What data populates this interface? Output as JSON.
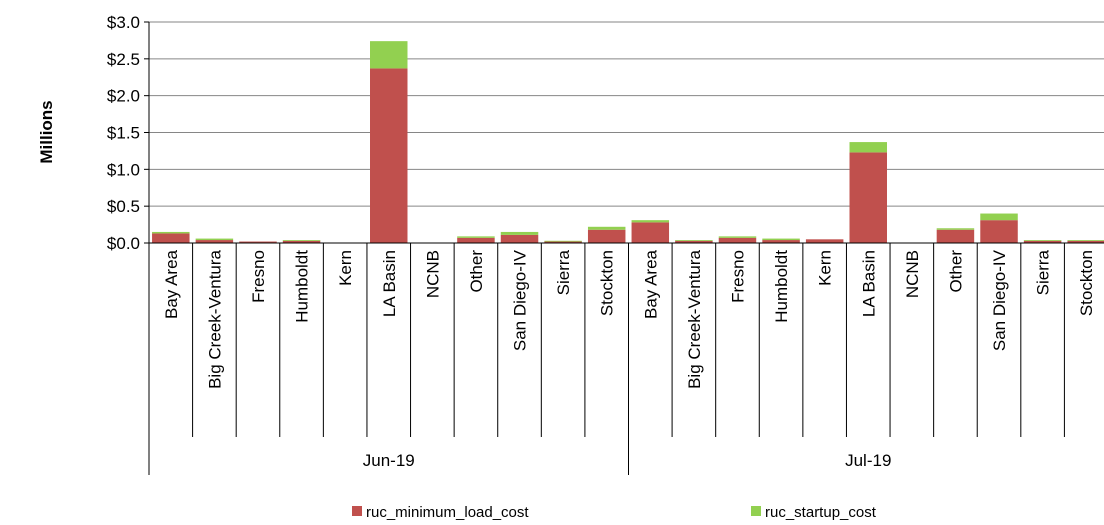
{
  "chart_data": {
    "type": "bar",
    "stacked": true,
    "ylabel": "Millions",
    "ylim": [
      0,
      3.0
    ],
    "y_ticks": [
      "$0.0",
      "$0.5",
      "$1.0",
      "$1.5",
      "$2.0",
      "$2.5",
      "$3.0"
    ],
    "grid": true,
    "legend_position": "bottom",
    "groups": [
      {
        "label": "Jun-19",
        "categories": [
          "Bay Area",
          "Big Creek-Ventura",
          "Fresno",
          "Humboldt",
          "Kern",
          "LA Basin",
          "NCNB",
          "Other",
          "San Diego-IV",
          "Sierra",
          "Stockton"
        ],
        "series": [
          {
            "name": "ruc_minimum_load_cost",
            "values": [
              0.13,
              0.04,
              0.02,
              0.03,
              0.0,
              2.37,
              0.0,
              0.07,
              0.11,
              0.02,
              0.18
            ]
          },
          {
            "name": "ruc_startup_cost",
            "values": [
              0.02,
              0.02,
              0.0,
              0.01,
              0.0,
              0.37,
              0.0,
              0.02,
              0.04,
              0.01,
              0.04
            ]
          }
        ]
      },
      {
        "label": "Jul-19",
        "categories": [
          "Bay Area",
          "Big Creek-Ventura",
          "Fresno",
          "Humboldt",
          "Kern",
          "LA Basin",
          "NCNB",
          "Other",
          "San Diego-IV",
          "Sierra",
          "Stockton"
        ],
        "series": [
          {
            "name": "ruc_minimum_load_cost",
            "values": [
              0.28,
              0.03,
              0.07,
              0.04,
              0.05,
              1.23,
              0.0,
              0.18,
              0.31,
              0.03,
              0.03
            ]
          },
          {
            "name": "ruc_startup_cost",
            "values": [
              0.03,
              0.01,
              0.02,
              0.02,
              0.0,
              0.14,
              0.0,
              0.02,
              0.09,
              0.01,
              0.01
            ]
          }
        ]
      }
    ],
    "series_colors": {
      "ruc_minimum_load_cost": "#c0504d",
      "ruc_startup_cost": "#92d050"
    },
    "legend": [
      {
        "name": "ruc_minimum_load_cost",
        "color": "#c0504d"
      },
      {
        "name": "ruc_startup_cost",
        "color": "#92d050"
      }
    ]
  }
}
